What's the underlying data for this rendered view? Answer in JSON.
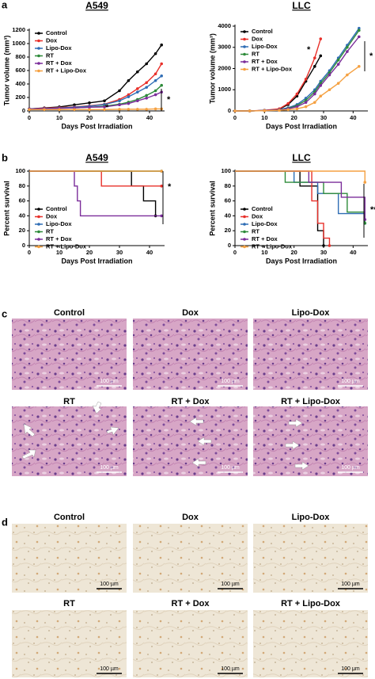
{
  "panel_labels": [
    "a",
    "b",
    "c",
    "d"
  ],
  "chart_data": [
    {
      "type": "line",
      "title": "A549",
      "xlabel": "Days Post Irradiation",
      "ylabel": "Tumor volume (mm³)",
      "x": [
        0,
        5,
        10,
        15,
        20,
        25,
        30,
        33,
        36,
        39,
        42,
        44
      ],
      "xlim": [
        0,
        45
      ],
      "xticks": [
        0,
        10,
        20,
        30,
        40
      ],
      "ylim": [
        0,
        1200
      ],
      "yticks": [
        0,
        200,
        400,
        600,
        800,
        1000,
        1200
      ],
      "legend": "upper left",
      "annotations": [
        "*",
        "*"
      ],
      "series": [
        {
          "name": "Control",
          "color": "#000000",
          "values": [
            30,
            45,
            60,
            90,
            120,
            150,
            300,
            450,
            580,
            700,
            850,
            980
          ]
        },
        {
          "name": "Dox",
          "color": "#e8302a",
          "values": [
            30,
            40,
            50,
            60,
            75,
            100,
            170,
            240,
            330,
            420,
            550,
            700
          ]
        },
        {
          "name": "Lipo-Dox",
          "color": "#2f6db5",
          "values": [
            30,
            35,
            45,
            55,
            70,
            95,
            150,
            210,
            280,
            350,
            450,
            520
          ]
        },
        {
          "name": "RT",
          "color": "#2e8b3a",
          "values": [
            30,
            35,
            40,
            45,
            55,
            70,
            100,
            130,
            170,
            230,
            300,
            380
          ]
        },
        {
          "name": "RT + Dox",
          "color": "#7b2d9a",
          "values": [
            30,
            35,
            40,
            45,
            55,
            60,
            90,
            110,
            150,
            190,
            240,
            280
          ]
        },
        {
          "name": "RT + Lipo-Dox",
          "color": "#f5a142",
          "values": [
            20,
            20,
            20,
            20,
            20,
            20,
            25,
            25,
            25,
            25,
            30,
            30
          ]
        }
      ]
    },
    {
      "type": "line",
      "title": "LLC",
      "xlabel": "Days Post Irradiation",
      "ylabel": "Tumor volume (mm³)",
      "x": [
        0,
        5,
        10,
        15,
        18,
        21,
        24,
        27,
        29,
        32,
        35,
        38,
        42
      ],
      "xlim": [
        0,
        45
      ],
      "xticks": [
        0,
        10,
        20,
        30,
        40
      ],
      "ylim": [
        0,
        4000
      ],
      "yticks": [
        0,
        1000,
        2000,
        3000,
        4000
      ],
      "legend": "upper left",
      "annotations": [
        "*",
        "*"
      ],
      "series": [
        {
          "name": "Control",
          "color": "#000000",
          "values": [
            0,
            0,
            20,
            80,
            300,
            700,
            1400,
            2100,
            2600,
            null,
            null,
            null,
            null
          ]
        },
        {
          "name": "Dox",
          "color": "#e8302a",
          "values": [
            0,
            0,
            30,
            100,
            350,
            800,
            1500,
            2500,
            3400,
            null,
            null,
            null,
            null
          ]
        },
        {
          "name": "Lipo-Dox",
          "color": "#2f6db5",
          "values": [
            0,
            0,
            20,
            60,
            150,
            300,
            600,
            1000,
            1400,
            1900,
            2500,
            3100,
            3900
          ]
        },
        {
          "name": "RT",
          "color": "#2e8b3a",
          "values": [
            0,
            0,
            20,
            50,
            120,
            250,
            500,
            900,
            1300,
            1800,
            2400,
            3000,
            3800
          ]
        },
        {
          "name": "RT + Dox",
          "color": "#7b2d9a",
          "values": [
            0,
            0,
            20,
            50,
            100,
            200,
            400,
            800,
            1200,
            1700,
            2200,
            2800,
            3500
          ]
        },
        {
          "name": "RT + Lipo-Dox",
          "color": "#f5a142",
          "values": [
            0,
            0,
            10,
            30,
            60,
            100,
            200,
            400,
            700,
            1000,
            1300,
            1700,
            2100
          ]
        }
      ]
    },
    {
      "type": "step",
      "title": "A549",
      "xlabel": "Days Post Irradiation",
      "ylabel": "Percent survival",
      "xlim": [
        0,
        45
      ],
      "xticks": [
        0,
        10,
        20,
        30,
        40
      ],
      "ylim": [
        0,
        100
      ],
      "yticks": [
        0,
        20,
        40,
        60,
        80,
        100
      ],
      "legend": "lower left",
      "annotations": [
        "*"
      ],
      "series": [
        {
          "name": "Control",
          "color": "#000000",
          "x": [
            0,
            34,
            38,
            42
          ],
          "values": [
            100,
            80,
            60,
            40
          ]
        },
        {
          "name": "Dox",
          "color": "#e8302a",
          "x": [
            0,
            24,
            44
          ],
          "values": [
            100,
            80,
            80
          ]
        },
        {
          "name": "Lipo-Dox",
          "color": "#2f6db5",
          "x": [
            0,
            44
          ],
          "values": [
            100,
            100
          ]
        },
        {
          "name": "RT",
          "color": "#2e8b3a",
          "x": [
            0,
            44
          ],
          "values": [
            100,
            100
          ]
        },
        {
          "name": "RT + Dox",
          "color": "#7b2d9a",
          "x": [
            0,
            15,
            16,
            17,
            44
          ],
          "values": [
            100,
            80,
            60,
            40,
            40
          ]
        },
        {
          "name": "RT + Lipo-Dox",
          "color": "#f5a142",
          "x": [
            0,
            44
          ],
          "values": [
            100,
            100
          ]
        }
      ]
    },
    {
      "type": "step",
      "title": "LLC",
      "xlabel": "Days Post Irradiation",
      "ylabel": "Percent survival",
      "xlim": [
        0,
        45
      ],
      "xticks": [
        0,
        10,
        20,
        30,
        40
      ],
      "ylim": [
        0,
        100
      ],
      "yticks": [
        0,
        20,
        40,
        60,
        80,
        100
      ],
      "legend": "lower left",
      "annotations": [
        "**"
      ],
      "series": [
        {
          "name": "Control",
          "color": "#000000",
          "x": [
            0,
            22,
            28,
            30
          ],
          "values": [
            100,
            80,
            20,
            0
          ]
        },
        {
          "name": "Dox",
          "color": "#e8302a",
          "x": [
            0,
            26,
            28,
            30,
            32
          ],
          "values": [
            100,
            60,
            30,
            10,
            0
          ]
        },
        {
          "name": "Lipo-Dox",
          "color": "#2f6db5",
          "x": [
            0,
            20,
            28,
            35,
            44
          ],
          "values": [
            100,
            85,
            70,
            43,
            30
          ]
        },
        {
          "name": "RT",
          "color": "#2e8b3a",
          "x": [
            0,
            17,
            30,
            38,
            44
          ],
          "values": [
            100,
            85,
            70,
            45,
            30
          ]
        },
        {
          "name": "RT + Dox",
          "color": "#7b2d9a",
          "x": [
            0,
            25,
            36,
            44
          ],
          "values": [
            100,
            85,
            65,
            35
          ]
        },
        {
          "name": "RT + Lipo-Dox",
          "color": "#f5a142",
          "x": [
            0,
            40,
            44
          ],
          "values": [
            100,
            100,
            85
          ]
        }
      ]
    }
  ],
  "histology": {
    "titles": [
      "Control",
      "Dox",
      "Lipo-Dox",
      "RT",
      "RT + Dox",
      "RT + Lipo-Dox"
    ],
    "scale": "100 µm"
  },
  "ihc": {
    "titles": [
      "Control",
      "Dox",
      "Lipo-Dox",
      "RT",
      "RT + Dox",
      "RT + Lipo-Dox"
    ],
    "scale": "100 µm"
  }
}
